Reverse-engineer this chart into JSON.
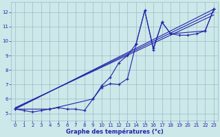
{
  "xlabel": "Graphe des températures (°c)",
  "xlim": [
    -0.5,
    23.5
  ],
  "ylim": [
    4.5,
    12.7
  ],
  "xticks": [
    0,
    1,
    2,
    3,
    4,
    5,
    6,
    7,
    8,
    9,
    10,
    11,
    12,
    13,
    14,
    15,
    16,
    17,
    18,
    19,
    20,
    21,
    22,
    23
  ],
  "yticks": [
    5,
    6,
    7,
    8,
    9,
    10,
    11,
    12
  ],
  "background_color": "#cce8e8",
  "line_color": "#2222aa",
  "grid_color": "#99bbcc",
  "series_main_x": [
    0,
    1,
    2,
    3,
    4,
    5,
    6,
    7,
    8,
    9,
    10,
    11,
    12,
    13,
    14,
    15,
    16,
    17,
    18,
    19,
    20,
    21,
    22,
    23
  ],
  "series_main_y": [
    5.3,
    5.2,
    5.1,
    5.2,
    5.3,
    5.4,
    5.3,
    5.3,
    5.2,
    6.0,
    6.8,
    7.05,
    7.0,
    7.4,
    9.8,
    12.1,
    9.5,
    11.3,
    10.5,
    10.4,
    10.4,
    10.5,
    10.7,
    12.2
  ],
  "series_jagged_x": [
    0,
    4,
    9,
    10,
    11,
    12,
    13,
    14,
    15,
    16,
    17,
    18,
    22,
    23
  ],
  "series_jagged_y": [
    5.3,
    5.3,
    6.0,
    6.9,
    7.5,
    8.5,
    9.0,
    9.8,
    12.1,
    9.4,
    11.3,
    10.5,
    10.7,
    12.2
  ],
  "trend1_x": [
    0,
    23
  ],
  "trend1_y": [
    5.3,
    12.2
  ],
  "trend2_x": [
    0,
    23
  ],
  "trend2_y": [
    5.35,
    12.0
  ],
  "trend3_x": [
    0,
    23
  ],
  "trend3_y": [
    5.4,
    11.8
  ]
}
